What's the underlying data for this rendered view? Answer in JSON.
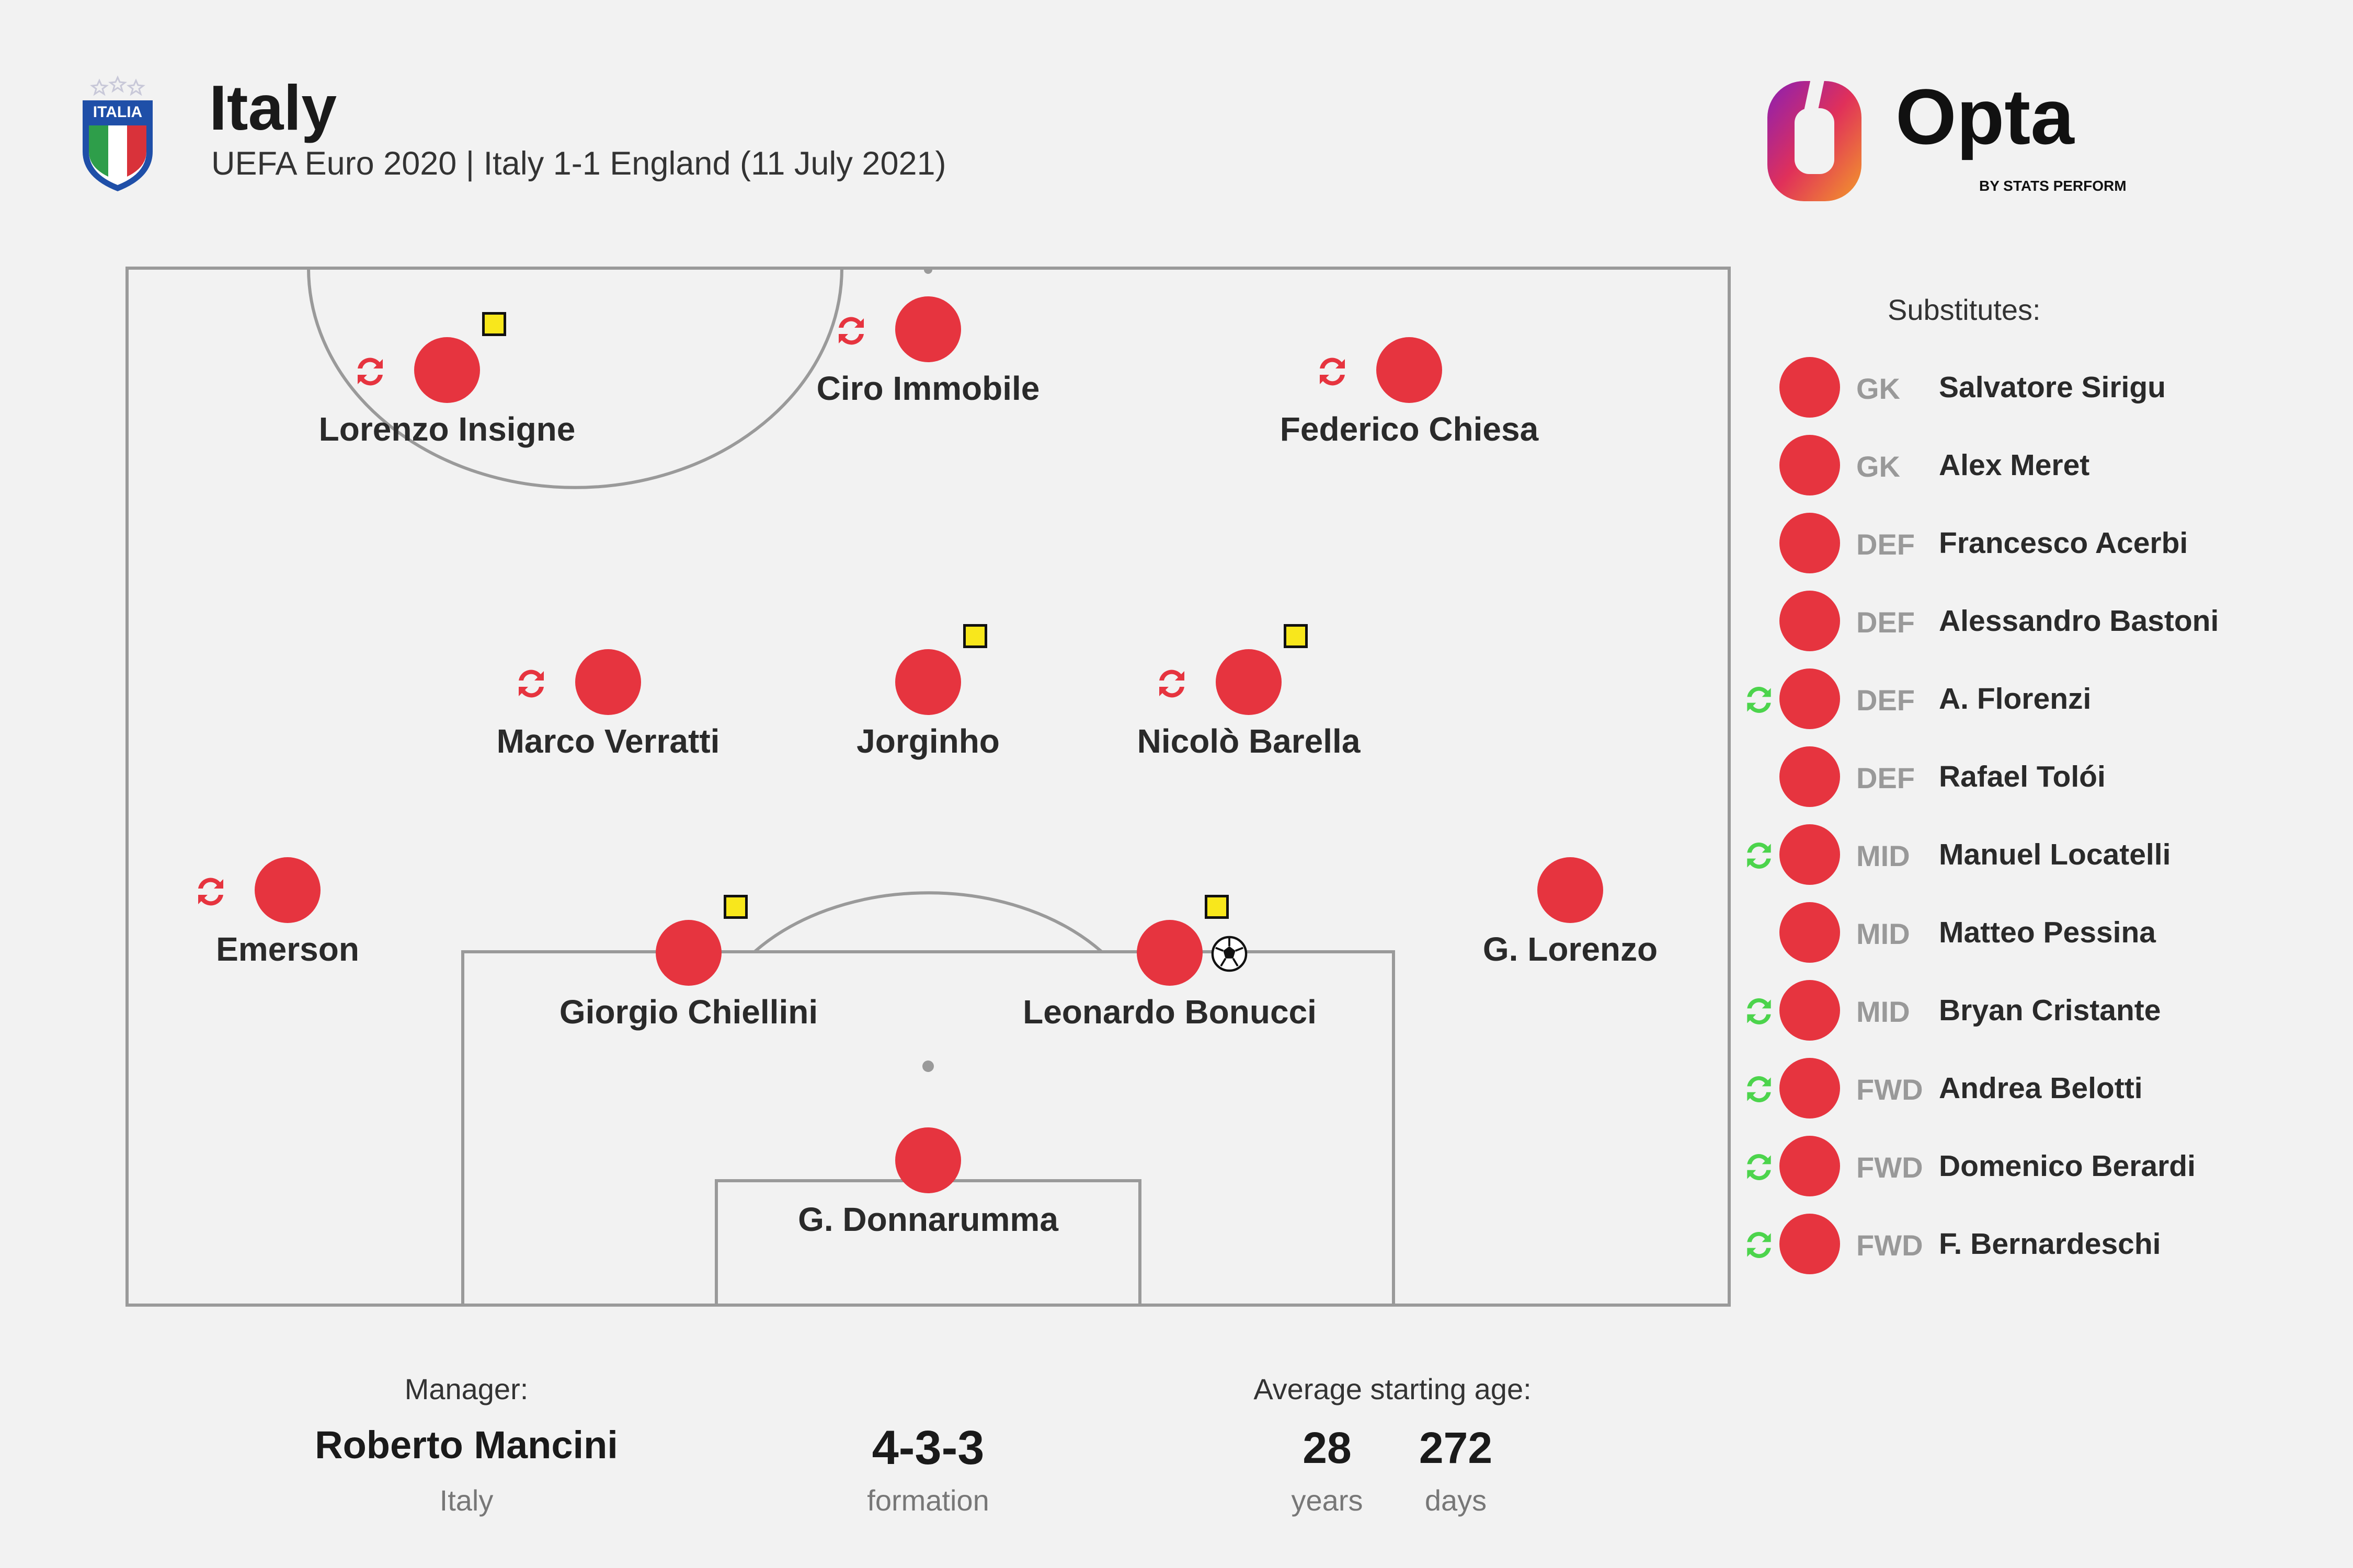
{
  "header": {
    "crest_text": "ITALIA",
    "title": "Italy",
    "subtitle": "UEFA Euro 2020 | Italy 1-1 England (11 July 2021)"
  },
  "brand": {
    "name": "Opta",
    "tagline": "BY STATS PERFORM"
  },
  "colors": {
    "player_dot": "#e6343f",
    "sub_on_icon": "#4cd44c",
    "sub_off_icon": "#e6343f",
    "yellow_card": "#f8e71c"
  },
  "lineup": {
    "players": [
      {
        "name": "Lorenzo Insigne",
        "subbed_off": true,
        "yellow_card": true,
        "goal": false
      },
      {
        "name": "Ciro Immobile",
        "subbed_off": true,
        "yellow_card": false,
        "goal": false
      },
      {
        "name": "Federico Chiesa",
        "subbed_off": true,
        "yellow_card": false,
        "goal": false
      },
      {
        "name": "Marco Verratti",
        "subbed_off": true,
        "yellow_card": false,
        "goal": false
      },
      {
        "name": "Jorginho",
        "subbed_off": false,
        "yellow_card": true,
        "goal": false
      },
      {
        "name": "Nicolò Barella",
        "subbed_off": true,
        "yellow_card": true,
        "goal": false
      },
      {
        "name": "Emerson",
        "subbed_off": true,
        "yellow_card": false,
        "goal": false
      },
      {
        "name": "Giorgio Chiellini",
        "subbed_off": false,
        "yellow_card": true,
        "goal": false
      },
      {
        "name": "Leonardo Bonucci",
        "subbed_off": false,
        "yellow_card": true,
        "goal": true
      },
      {
        "name": "G. Lorenzo",
        "subbed_off": false,
        "yellow_card": false,
        "goal": false
      },
      {
        "name": "G. Donnarumma",
        "subbed_off": false,
        "yellow_card": false,
        "goal": false
      }
    ]
  },
  "substitutes": {
    "heading": "Substitutes:",
    "items": [
      {
        "pos": "GK",
        "name": "Salvatore Sirigu",
        "subbed_on": false
      },
      {
        "pos": "GK",
        "name": "Alex Meret",
        "subbed_on": false
      },
      {
        "pos": "DEF",
        "name": "Francesco Acerbi",
        "subbed_on": false
      },
      {
        "pos": "DEF",
        "name": "Alessandro Bastoni",
        "subbed_on": false
      },
      {
        "pos": "DEF",
        "name": "A. Florenzi",
        "subbed_on": true
      },
      {
        "pos": "DEF",
        "name": "Rafael Tolói",
        "subbed_on": false
      },
      {
        "pos": "MID",
        "name": "Manuel Locatelli",
        "subbed_on": true
      },
      {
        "pos": "MID",
        "name": "Matteo Pessina",
        "subbed_on": false
      },
      {
        "pos": "MID",
        "name": "Bryan Cristante",
        "subbed_on": true
      },
      {
        "pos": "FWD",
        "name": "Andrea Belotti",
        "subbed_on": true
      },
      {
        "pos": "FWD",
        "name": "Domenico Berardi",
        "subbed_on": true
      },
      {
        "pos": "FWD",
        "name": "F. Bernardeschi",
        "subbed_on": true
      }
    ]
  },
  "footer": {
    "manager_label": "Manager:",
    "manager_name": "Roberto Mancini",
    "manager_country": "Italy",
    "formation": "4-3-3",
    "formation_label": "formation",
    "age_label": "Average starting age:",
    "age_years": "28",
    "age_years_label": "years",
    "age_days": "272",
    "age_days_label": "days"
  }
}
